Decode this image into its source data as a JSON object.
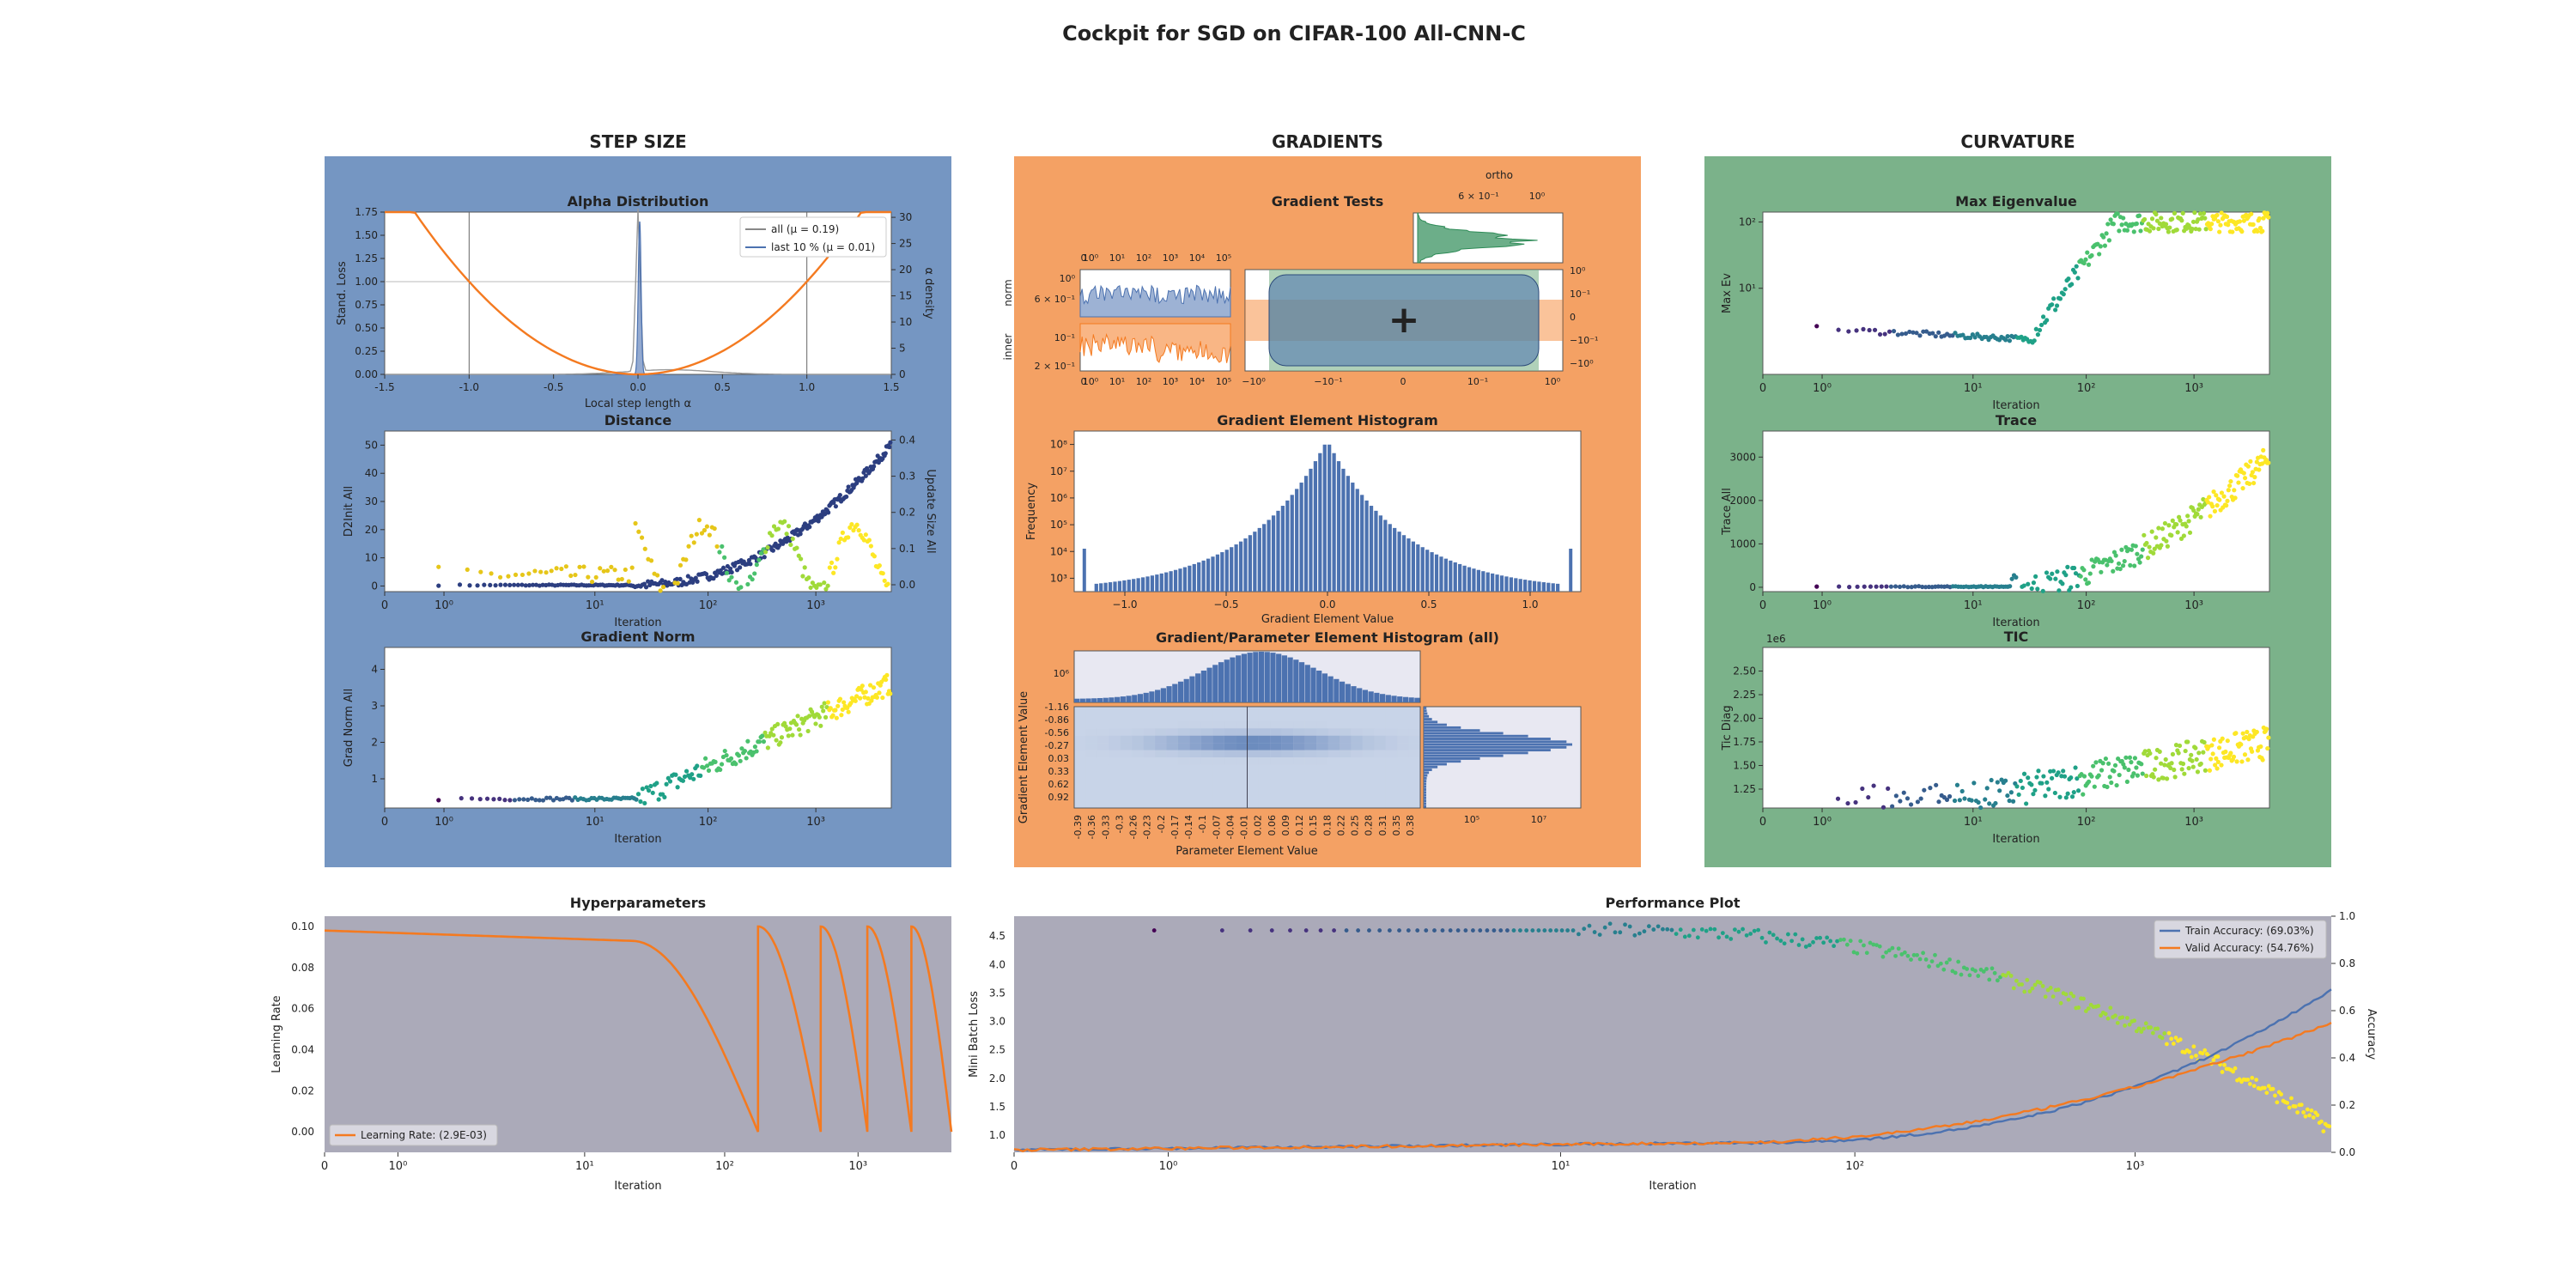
{
  "figure": {
    "title": "Cockpit for SGD on CIFAR-100 All-CNN-C"
  },
  "sections": {
    "step_size": {
      "heading": "STEP SIZE",
      "bg": "#7596c2"
    },
    "gradients": {
      "heading": "GRADIENTS",
      "bg": "#f4a164"
    },
    "curvature": {
      "heading": "CURVATURE",
      "bg": "#7bb28a"
    }
  },
  "panels": {
    "alpha": {
      "title": "Alpha Distribution",
      "xlabel": "Local step length α",
      "ylabel": "Stand. Loss",
      "ylabel2": "α density",
      "xticks": [
        "-1.5",
        "-1.0",
        "-0.5",
        "0.0",
        "0.5",
        "1.0",
        "1.5"
      ],
      "yticks": [
        "0.00",
        "0.25",
        "0.50",
        "0.75",
        "1.00",
        "1.25",
        "1.50",
        "1.75"
      ],
      "y2ticks": [
        "0",
        "5",
        "10",
        "15",
        "20",
        "25",
        "30"
      ],
      "legend": [
        "all (μ = 0.19)",
        "last 10 % (μ = 0.01)"
      ]
    },
    "distance": {
      "title": "Distance",
      "xlabel": "Iteration",
      "ylabel": "D2Init All",
      "ylabel2": "Update Size All",
      "yticks": [
        "0",
        "10",
        "20",
        "30",
        "40",
        "50"
      ],
      "y2ticks": [
        "0.0",
        "0.1",
        "0.2",
        "0.3",
        "0.4"
      ]
    },
    "gradnorm": {
      "title": "Gradient Norm",
      "xlabel": "Iteration",
      "ylabel": "Grad Norm All",
      "yticks": [
        "1",
        "2",
        "3",
        "4"
      ]
    },
    "gradtests": {
      "title": "Gradient Tests",
      "ortho": "ortho",
      "norm": "norm",
      "inner": "inner",
      "ortho_ticks": [
        "6 × 10⁻¹",
        "10⁰"
      ],
      "norm_yticks": [
        "10⁰",
        "6 × 10⁻¹"
      ],
      "inner_yticks": [
        "10⁻¹",
        "2 × 10⁻¹"
      ],
      "main_xticks": [
        "−10⁰",
        "−10⁻¹",
        "0",
        "10⁻¹",
        "10⁰"
      ],
      "main_yticks": [
        "10⁰",
        "10⁻¹",
        "0",
        "−10⁻¹",
        "−10⁰"
      ],
      "plus": "+"
    },
    "histogram": {
      "title": "Gradient Element Histogram",
      "xlabel": "Gradient Element Value",
      "ylabel": "Frequency",
      "xticks": [
        "−1.0",
        "−0.5",
        "0.0",
        "0.5",
        "1.0"
      ],
      "yticks": [
        "10³",
        "10⁴",
        "10⁵",
        "10⁶",
        "10⁷",
        "10⁸"
      ]
    },
    "hist2d": {
      "title": "Gradient/Parameter Element Histogram (all)",
      "xlabel": "Parameter Element Value",
      "ylabel": "Gradient Element Value",
      "yticks": [
        "-1.16",
        "-0.86",
        "-0.56",
        "-0.27",
        "0.03",
        "0.33",
        "0.62",
        "0.92"
      ],
      "xticks": [
        "-0.39",
        "-0.36",
        "-0.33",
        "-0.3",
        "-0.26",
        "-0.23",
        "-0.2",
        "-0.17",
        "-0.14",
        "-0.1",
        "-0.07",
        "-0.04",
        "-0.01",
        "0.02",
        "0.06",
        "0.09",
        "0.12",
        "0.15",
        "0.18",
        "0.22",
        "0.25",
        "0.28",
        "0.31",
        "0.35",
        "0.38"
      ],
      "top_ytick": "10⁶",
      "right_xticks": [
        "10⁵",
        "10⁷"
      ]
    },
    "maxev": {
      "title": "Max Eigenvalue",
      "xlabel": "Iteration",
      "ylabel": "Max Ev",
      "yticks": [
        "10¹",
        "10²"
      ]
    },
    "trace": {
      "title": "Trace",
      "xlabel": "Iteration",
      "ylabel": "Trace All",
      "yticks": [
        "0",
        "1000",
        "2000",
        "3000"
      ]
    },
    "tic": {
      "title": "TIC",
      "xlabel": "Iteration",
      "ylabel": "Tic Diag",
      "exponent": "1e6",
      "yticks": [
        "1.25",
        "1.50",
        "1.75",
        "2.00",
        "2.25",
        "2.50"
      ]
    },
    "hyper": {
      "title": "Hyperparameters",
      "xlabel": "Iteration",
      "ylabel": "Learning Rate",
      "yticks": [
        "0.00",
        "0.02",
        "0.04",
        "0.06",
        "0.08",
        "0.10"
      ],
      "legend": "Learning Rate: (2.9E-03)"
    },
    "perf": {
      "title": "Performance Plot",
      "xlabel": "Iteration",
      "ylabel": "Mini Batch Loss",
      "ylabel2": "Accuracy",
      "yticks": [
        "1.0",
        "1.5",
        "2.0",
        "2.5",
        "3.0",
        "3.5",
        "4.0",
        "4.5"
      ],
      "y2ticks": [
        "0.0",
        "0.2",
        "0.4",
        "0.6",
        "0.8",
        "1.0"
      ],
      "legend": [
        "Train Accuracy: (69.03%)",
        "Valid Accuracy: (54.76%)"
      ]
    }
  },
  "iteration_ticks": [
    "0",
    "10⁰",
    "10¹",
    "10²",
    "10³",
    "10⁴"
  ],
  "colors": {
    "orange": "#f47a20",
    "blue": "#4c72b0",
    "plot_bg": "#ffffff",
    "hyper_bg": "#abaab9",
    "green": "#2e8b57"
  },
  "chart_data": [
    {
      "type": "line",
      "title": "Alpha Distribution",
      "xlim": [
        -1.5,
        1.5
      ],
      "ylim": [
        0,
        1.75
      ],
      "series": [
        {
          "name": "all (μ = 0.19)"
        },
        {
          "name": "last 10 % (μ = 0.01)"
        }
      ],
      "x": [
        -1.5,
        -1.0,
        -0.5,
        0.0,
        0.5,
        1.0,
        1.5
      ],
      "loss_curve": [
        2.25,
        1.0,
        0.25,
        0.0,
        0.25,
        1.0,
        2.25
      ]
    },
    {
      "type": "scatter",
      "title": "Distance",
      "ylim": [
        0,
        55
      ],
      "x": [
        0.5,
        1,
        2,
        3,
        4,
        4.7
      ],
      "d2init": [
        0,
        0.3,
        1,
        4,
        25,
        52
      ]
    },
    {
      "type": "scatter",
      "title": "Gradient Norm",
      "ylim": [
        0.2,
        4.6
      ],
      "x": [
        0.5,
        1,
        2,
        2.3,
        3,
        4,
        4.7
      ],
      "values": [
        0.5,
        0.45,
        0.35,
        0.5,
        2.5,
        3.2,
        3.9
      ]
    },
    {
      "type": "bar",
      "title": "Gradient Element Histogram",
      "xlim": [
        -1.25,
        1.25
      ],
      "peak": 100000000
    },
    {
      "type": "scatter",
      "title": "Max Eigenvalue",
      "x": [
        0.5,
        2,
        2.4,
        3,
        4,
        4.7
      ],
      "values": [
        2.2,
        2.1,
        2.3,
        60,
        80,
        70
      ]
    },
    {
      "type": "scatter",
      "title": "Trace",
      "ylim": [
        0,
        3500
      ],
      "x": [
        0.5,
        2,
        2.3,
        3,
        4,
        4.7
      ],
      "values": [
        10,
        20,
        40,
        600,
        2000,
        3000
      ]
    },
    {
      "type": "scatter",
      "title": "TIC",
      "ylim": [
        1.05,
        2.75
      ],
      "x": [
        0.5,
        2,
        2.5,
        3,
        4,
        4.7
      ],
      "values": [
        1.15,
        1.2,
        1.35,
        1.6,
        1.65,
        1.7
      ]
    },
    {
      "type": "line",
      "title": "Hyperparameters",
      "ylabel": "Learning Rate",
      "ylim": [
        -0.01,
        0.105
      ],
      "x": [
        0,
        2.3,
        2.9,
        3.25
      ],
      "values": [
        0.098,
        0.093,
        0.05,
        0.0
      ],
      "final": 0.0029
    },
    {
      "type": "line",
      "title": "Performance Plot",
      "ylim": [
        0.7,
        4.85
      ],
      "y2lim": [
        0,
        1
      ],
      "series": [
        {
          "name": "Train Accuracy: (69.03%)",
          "final": 0.6903
        },
        {
          "name": "Valid Accuracy: (54.76%)",
          "final": 0.5476
        }
      ],
      "x": [
        0,
        2,
        3,
        4,
        4.7
      ],
      "loss": [
        4.6,
        4.6,
        4.3,
        3.3,
        1.1
      ]
    }
  ]
}
